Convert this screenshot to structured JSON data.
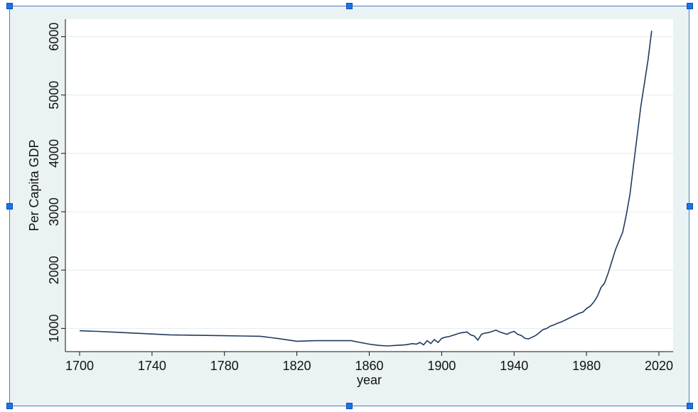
{
  "chart_data": {
    "type": "line",
    "xlabel": "year",
    "ylabel": "Per Capita GDP",
    "xlim": [
      1700,
      2020
    ],
    "ylim": [
      700,
      6300
    ],
    "xticks": [
      1700,
      1740,
      1780,
      1820,
      1860,
      1900,
      1940,
      1980,
      2020
    ],
    "yticks": [
      1000,
      2000,
      3000,
      4000,
      5000,
      6000
    ],
    "grid": true,
    "colors": {
      "line": "#1f3a5f",
      "plot_bg": "#ffffff",
      "outer_bg": "#eaf2f3",
      "grid": "#e3ecef",
      "selection": "#1a73e8"
    },
    "series": [
      {
        "x": [
          1700,
          1710,
          1720,
          1730,
          1740,
          1750,
          1760,
          1770,
          1780,
          1790,
          1800,
          1810,
          1820,
          1830,
          1840,
          1850,
          1855,
          1860,
          1865,
          1870,
          1875,
          1880,
          1884,
          1886,
          1888,
          1890,
          1892,
          1894,
          1896,
          1898,
          1900,
          1902,
          1904,
          1906,
          1908,
          1910,
          1912,
          1914,
          1916,
          1918,
          1920,
          1922,
          1924,
          1926,
          1928,
          1930,
          1932,
          1934,
          1936,
          1938,
          1940,
          1942,
          1944,
          1946,
          1948,
          1950,
          1952,
          1954,
          1956,
          1958,
          1960,
          1962,
          1964,
          1966,
          1968,
          1970,
          1972,
          1974,
          1976,
          1978,
          1980,
          1982,
          1984,
          1986,
          1988,
          1990,
          1992,
          1994,
          1996,
          1998,
          2000,
          2002,
          2004,
          2006,
          2008,
          2010,
          2012,
          2014,
          2016
        ],
        "y": [
          960,
          950,
          935,
          920,
          905,
          890,
          885,
          880,
          875,
          870,
          865,
          825,
          780,
          790,
          790,
          790,
          760,
          730,
          710,
          700,
          710,
          720,
          740,
          730,
          760,
          720,
          790,
          740,
          810,
          760,
          830,
          850,
          860,
          880,
          900,
          920,
          930,
          940,
          890,
          870,
          800,
          900,
          920,
          930,
          950,
          970,
          940,
          920,
          900,
          930,
          950,
          900,
          880,
          830,
          820,
          850,
          880,
          930,
          980,
          1000,
          1040,
          1060,
          1090,
          1110,
          1140,
          1170,
          1200,
          1230,
          1260,
          1280,
          1340,
          1380,
          1450,
          1550,
          1700,
          1780,
          1950,
          2150,
          2350,
          2500,
          2650,
          2950,
          3300,
          3800,
          4300,
          4800,
          5200,
          5600,
          6100
        ]
      }
    ]
  }
}
